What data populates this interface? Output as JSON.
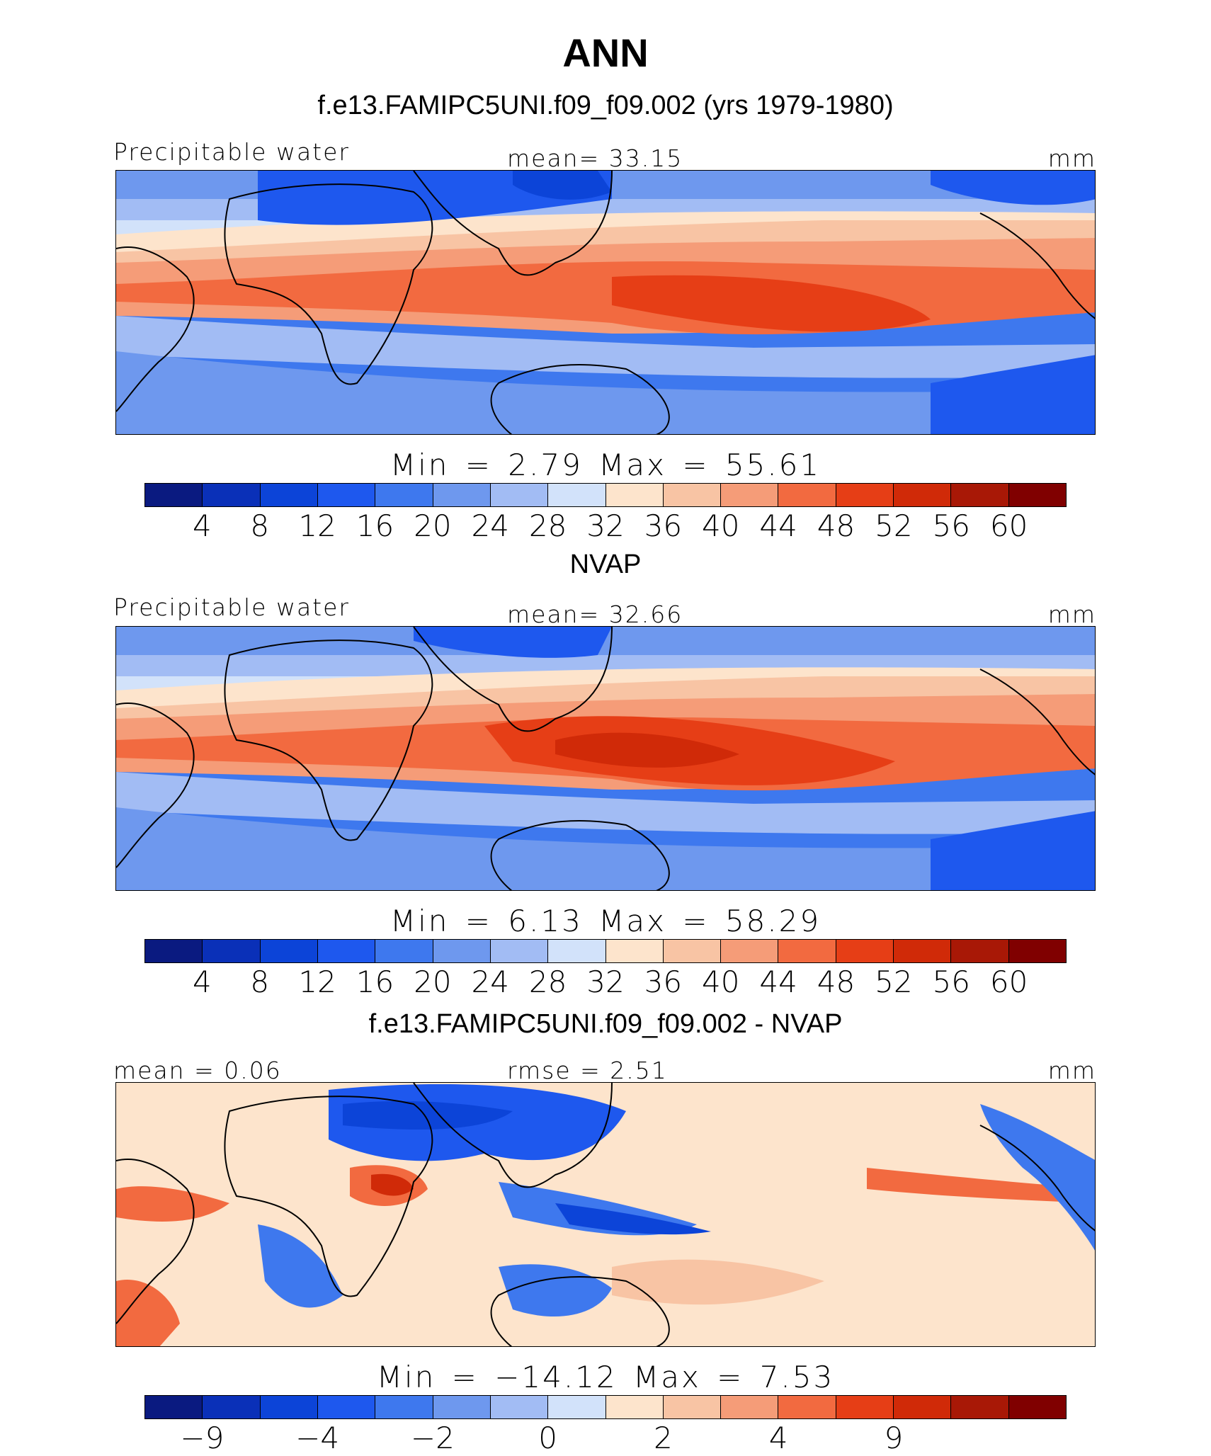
{
  "title": "ANN",
  "palette_abs": [
    "#0a1a80",
    "#0a30b8",
    "#0c44d8",
    "#1e58ee",
    "#3e78ee",
    "#6e98ee",
    "#a2bcf4",
    "#d2e2fa",
    "#fde4cc",
    "#f8c4a4",
    "#f59c78",
    "#f26a40",
    "#e63e16",
    "#d02a08",
    "#a81806",
    "#800000"
  ],
  "palette_diff": [
    "#0a1a80",
    "#0a30b8",
    "#0c44d8",
    "#1e58ee",
    "#3e78ee",
    "#6e98ee",
    "#a2bcf4",
    "#d2e2fa",
    "#fde4cc",
    "#f8c4a4",
    "#f59c78",
    "#f26a40",
    "#e63e16",
    "#d02a08",
    "#a81806",
    "#800000"
  ],
  "panels": [
    {
      "title": "f.e13.FAMIPC5UNI.f09_f09.002 (yrs 1979-1980)",
      "left_label": "Precipitable water",
      "center_label": "mean=   33.15",
      "units": "mm",
      "minmax": "Min  =     2.79  Max  =    55.61",
      "colorbar_ticks": [
        "4",
        "8",
        "12",
        "16",
        "20",
        "24",
        "28",
        "32",
        "36",
        "40",
        "44",
        "48",
        "52",
        "56",
        "60"
      ]
    },
    {
      "title": "NVAP",
      "left_label": "Precipitable water",
      "center_label": "mean=   32.66",
      "units": "mm",
      "minmax": "Min  =     6.13  Max  =    58.29",
      "colorbar_ticks": [
        "4",
        "8",
        "12",
        "16",
        "20",
        "24",
        "28",
        "32",
        "36",
        "40",
        "44",
        "48",
        "52",
        "56",
        "60"
      ]
    },
    {
      "title": "f.e13.FAMIPC5UNI.f09_f09.002 - NVAP",
      "left_label": "mean  =    0.06",
      "center_label": "rmse  =    2.51",
      "units": "mm",
      "minmax": "Min  =  −14.12  Max  =    7.53",
      "colorbar_ticks": [
        "−9",
        "−4",
        "−2",
        "0",
        "2",
        "4",
        "9"
      ]
    }
  ],
  "chart_data": [
    {
      "type": "heatmap",
      "title": "f.e13.FAMIPC5UNI.f09_f09.002 (yrs 1979-1980)",
      "variable": "Precipitable water",
      "units": "mm",
      "mean": 33.15,
      "min": 2.79,
      "max": 55.61,
      "contour_levels": [
        4,
        8,
        12,
        16,
        20,
        24,
        28,
        32,
        36,
        40,
        44,
        48,
        52,
        56,
        60
      ]
    },
    {
      "type": "heatmap",
      "title": "NVAP",
      "variable": "Precipitable water",
      "units": "mm",
      "mean": 32.66,
      "min": 6.13,
      "max": 58.29,
      "contour_levels": [
        4,
        8,
        12,
        16,
        20,
        24,
        28,
        32,
        36,
        40,
        44,
        48,
        52,
        56,
        60
      ]
    },
    {
      "type": "heatmap",
      "title": "f.e13.FAMIPC5UNI.f09_f09.002 - NVAP",
      "units": "mm",
      "mean": 0.06,
      "rmse": 2.51,
      "min": -14.12,
      "max": 7.53,
      "contour_levels": [
        -9,
        -4,
        -2,
        0,
        2,
        4,
        9
      ]
    }
  ]
}
